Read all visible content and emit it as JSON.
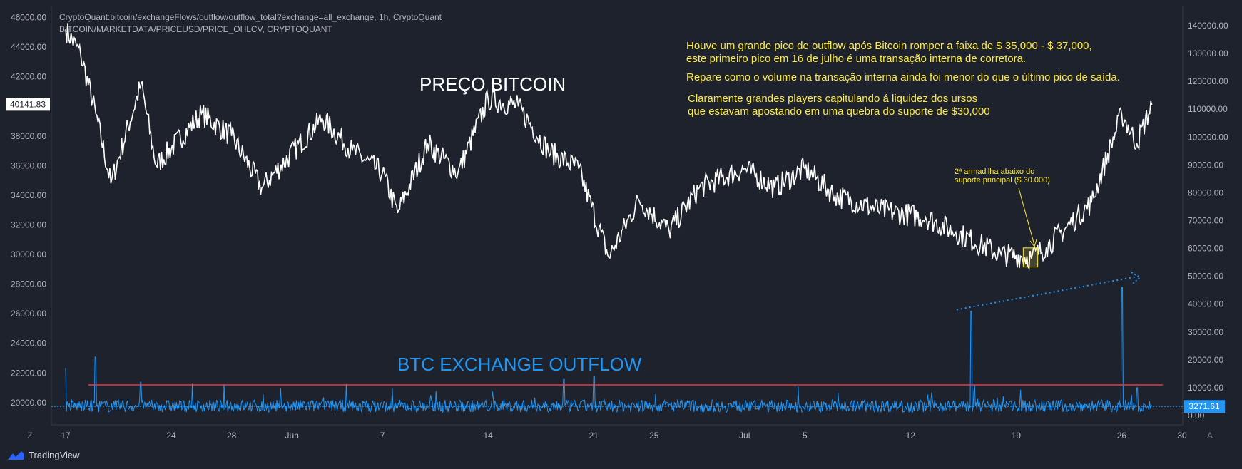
{
  "source_lines": [
    "CryptoQuant:bitcoin/exchangeFlows/outflow/outflow_total?exchange=all_exchange, 1h, CryptoQuant",
    "BITCOIN/MARKETDATA/PRICEUSD/PRICE_OHLCV, CRYPTOQUANT"
  ],
  "annotations": {
    "note1_line1": "Houve um grande pico de outflow após Bitcoin romper a faixa de $ 35,000 - $ 37,000,",
    "note1_line2": "este primeiro pico em 16 de julho é uma transação interna de corretora.",
    "note2": "Repare como o volume na transação interna ainda foi menor do que o último pico de saída.",
    "note3_line1": "Claramente grandes players capitulando á liquidez dos ursos",
    "note3_line2": "que estavam apostando em uma quebra do suporte de $30,000",
    "price_label": "PREÇO BITCOIN",
    "outflow_label": "BTC EXCHANGE OUTFLOW",
    "trap_line1": "2ª armadilha abaixo do",
    "trap_line2": "suporte principal ($ 30.000)"
  },
  "toolbar": {
    "zoom_label": "Z",
    "auto_label": "A"
  },
  "branding": {
    "name": "TradingView"
  },
  "colors": {
    "background": "#1e222d",
    "price_line": "#ffffff",
    "outflow_line": "#2196f3",
    "resistance_line": "#f23645",
    "annotation": "#ffeb3b",
    "current_outflow_badge": "#2196f3"
  },
  "chart_data": {
    "type": "line",
    "x_ticks": [
      "17",
      "24",
      "28",
      "Jun",
      "7",
      "14",
      "21",
      "25",
      "Jul",
      "5",
      "12",
      "19",
      "26",
      "30"
    ],
    "left_axis": {
      "ticks": [
        "46000.00",
        "44000.00",
        "42000.00",
        "38000.00",
        "36000.00",
        "34000.00",
        "32000.00",
        "30000.00",
        "28000.00",
        "26000.00",
        "24000.00",
        "22000.00",
        "20000.00"
      ],
      "range": [
        18500,
        46800
      ],
      "current_value": "40141.83"
    },
    "right_axis": {
      "ticks": [
        "140000.00",
        "130000.00",
        "120000.00",
        "110000.00",
        "100000.00",
        "90000.00",
        "80000.00",
        "70000.00",
        "60000.00",
        "50000.00",
        "40000.00",
        "30000.00",
        "20000.00",
        "10000.00",
        "0.00"
      ],
      "range": [
        0,
        145000
      ],
      "current_value": "3271.61"
    },
    "series": [
      {
        "axis": "left",
        "x": [
          "May 17",
          "May 18",
          "May 19",
          "May 20",
          "May 22",
          "May 23",
          "May 26",
          "May 28",
          "May 30",
          "Jun 3",
          "Jun 5",
          "Jun 7",
          "Jun 8",
          "Jun 10",
          "Jun 12",
          "Jun 14",
          "Jun 16",
          "Jun 18",
          "Jun 20",
          "Jun 22",
          "Jun 24",
          "Jun 26",
          "Jun 28",
          "Jul 1",
          "Jul 3",
          "Jul 5",
          "Jul 7",
          "Jul 10",
          "Jul 13",
          "Jul 15",
          "Jul 18",
          "Jul 20",
          "Jul 21",
          "Jul 23",
          "Jul 24",
          "Jul 26",
          "Jul 27",
          "Jul 28"
        ],
        "y": [
          45200,
          43500,
          39500,
          34800,
          41500,
          36000,
          39500,
          38000,
          34500,
          39200,
          37000,
          35500,
          32800,
          37500,
          35500,
          40500,
          40000,
          37000,
          35800,
          29800,
          33700,
          31600,
          34500,
          35800,
          34500,
          35800,
          34000,
          33000,
          32500,
          31500,
          30000,
          29800,
          30500,
          32500,
          33500,
          39500,
          37500,
          40100
        ]
      },
      {
        "axis": "right",
        "x": [
          "May 17",
          "May 19",
          "May 22",
          "Jun 19",
          "Jun 21",
          "Jul 16",
          "Jul 26",
          "Jul 27",
          "Jul 28"
        ],
        "y": [
          17000,
          21000,
          12000,
          13000,
          14000,
          37500,
          46000,
          10000,
          3271.61
        ]
      }
    ],
    "annotations": {
      "resistance_level_outflow": 11000,
      "support_trap_zone": {
        "from": "Jul 19",
        "to": "Jul 21",
        "low": 29300,
        "high": 30300
      }
    }
  }
}
